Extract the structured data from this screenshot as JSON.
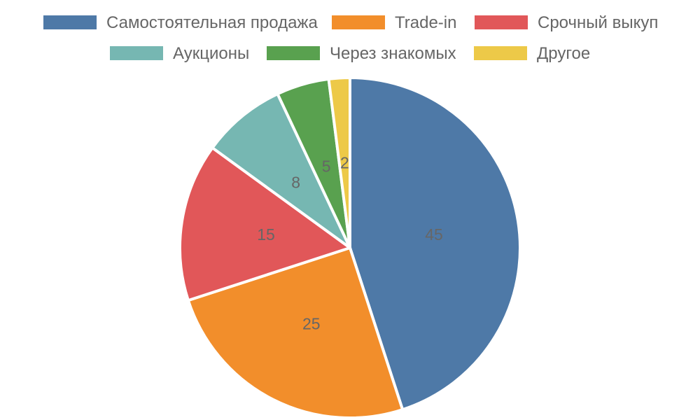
{
  "chart_data": {
    "type": "pie",
    "title": "",
    "legend_position": "top",
    "categories": [
      "Самостоятельная продажа",
      "Trade-in",
      "Срочный выкуп",
      "Аукционы",
      "Через знакомых",
      "Другое"
    ],
    "values": [
      45,
      25,
      15,
      8,
      5,
      2
    ],
    "labels": [
      "45",
      "25",
      "15",
      "8",
      "5",
      "2"
    ],
    "colors": [
      "#4e79a7",
      "#f28e2b",
      "#e15759",
      "#76b7b2",
      "#59a14f",
      "#edc948"
    ]
  }
}
